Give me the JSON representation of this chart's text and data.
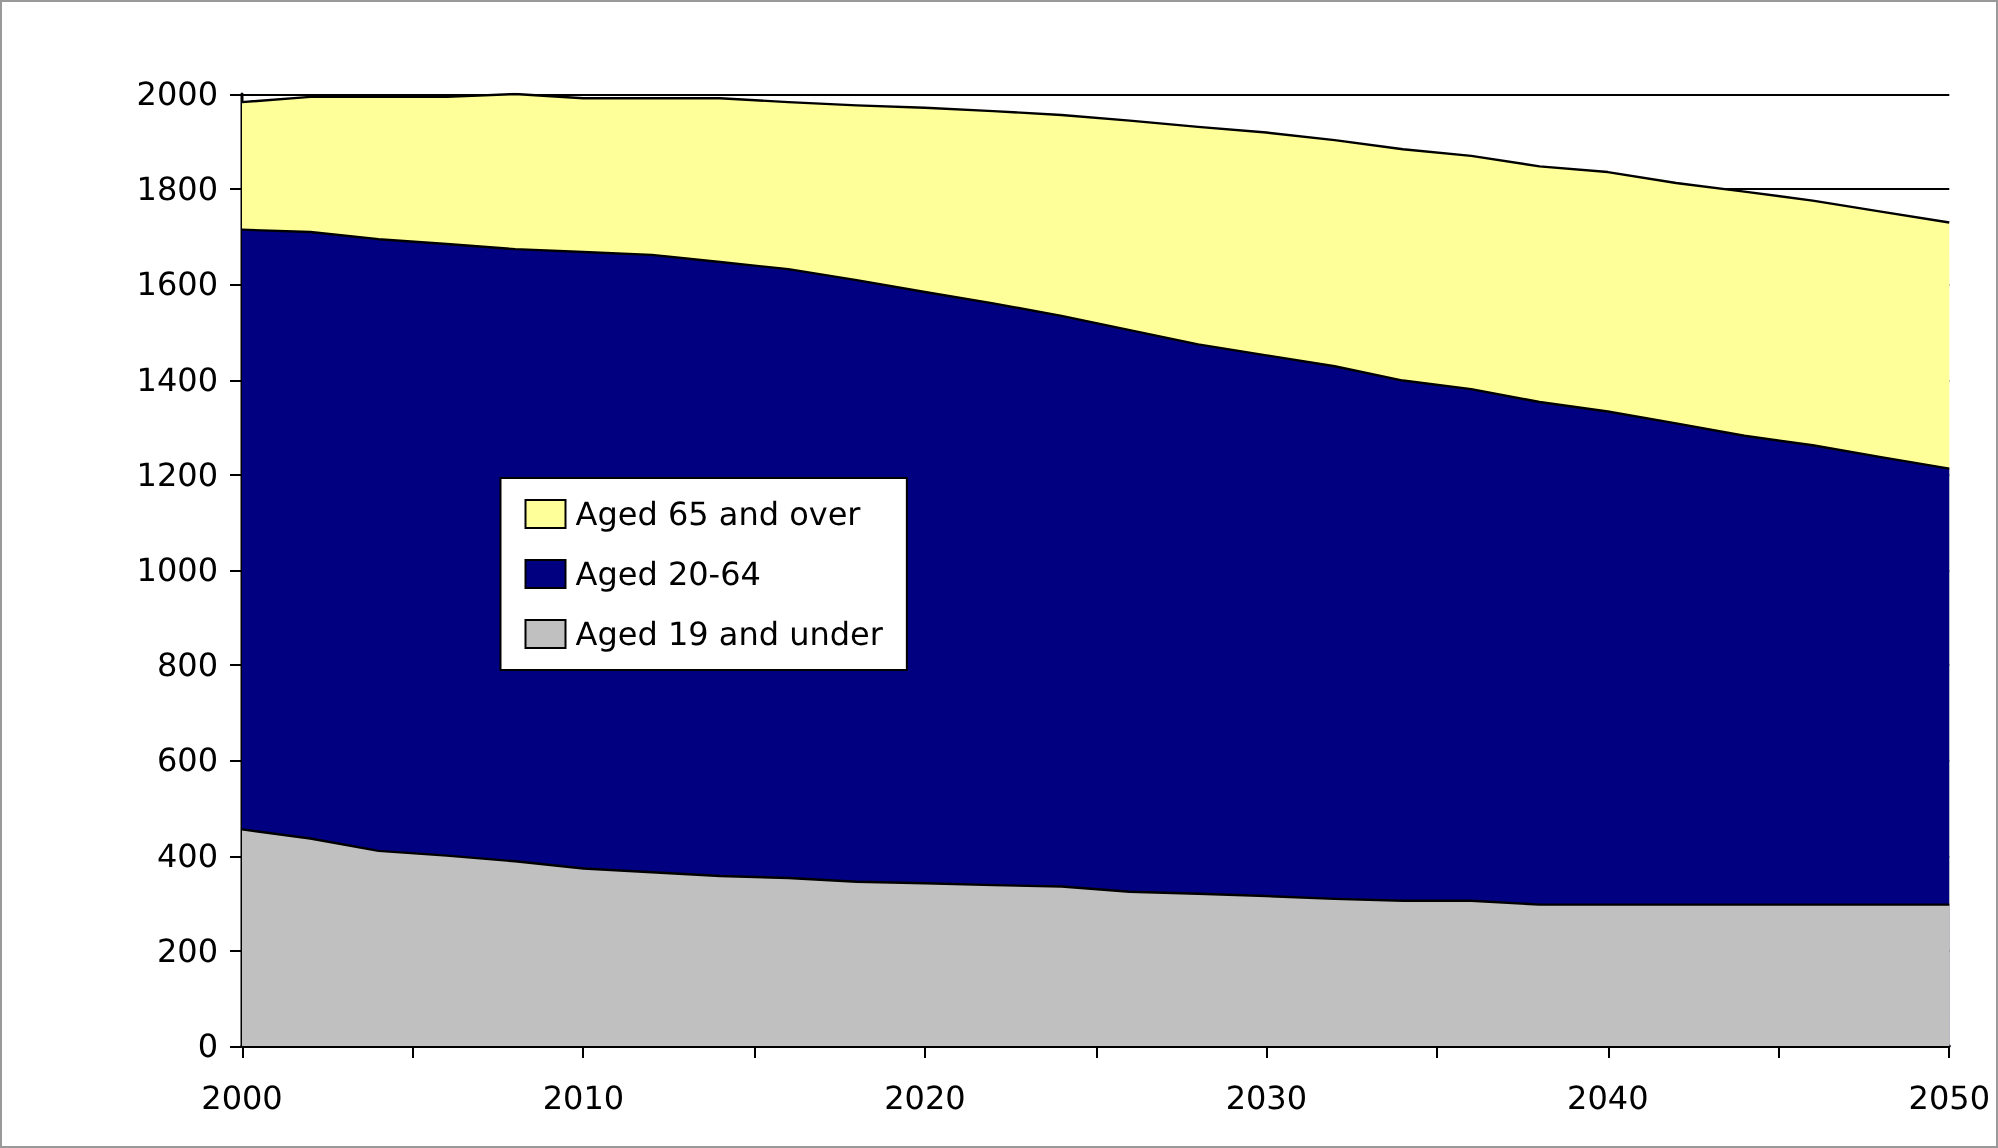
{
  "chart_data": {
    "type": "area",
    "stacked": true,
    "x": [
      2000,
      2002,
      2004,
      2006,
      2008,
      2010,
      2012,
      2014,
      2016,
      2018,
      2020,
      2022,
      2024,
      2026,
      2028,
      2030,
      2032,
      2034,
      2036,
      2038,
      2040,
      2042,
      2044,
      2046,
      2048,
      2050
    ],
    "series": [
      {
        "name": "Aged 19 and under",
        "color": "#c0c0c0",
        "values": [
          455,
          436,
          410,
          400,
          388,
          373,
          365,
          357,
          353,
          345,
          342,
          338,
          335,
          324,
          320,
          315,
          309,
          305,
          305,
          297,
          297,
          297,
          297,
          297,
          297,
          297
        ]
      },
      {
        "name": "Aged 20-64",
        "color": "#000080",
        "values": [
          1260,
          1274,
          1285,
          1285,
          1286,
          1295,
          1297,
          1290,
          1279,
          1264,
          1242,
          1222,
          1199,
          1180,
          1154,
          1136,
          1119,
          1093,
          1075,
          1056,
          1036,
          1011,
          985,
          965,
          940,
          916
        ]
      },
      {
        "name": "Aged 65 and over",
        "color": "#ffff99",
        "values": [
          268,
          284,
          299,
          309,
          326,
          323,
          329,
          344,
          351,
          367,
          387,
          404,
          422,
          440,
          457,
          468,
          475,
          486,
          490,
          495,
          503,
          505,
          513,
          514,
          516,
          517
        ]
      }
    ],
    "xlim": [
      2000,
      2050
    ],
    "xticks": [
      2000,
      {
        "value": 2005,
        "label": null
      },
      2010,
      {
        "value": 2015,
        "label": null
      },
      2020,
      {
        "value": 2025,
        "label": null
      },
      2030,
      {
        "value": 2035,
        "label": null
      },
      2040,
      {
        "value": 2045,
        "label": null
      },
      2050
    ],
    "ylim": [
      0,
      2000
    ],
    "yticks": [
      0,
      200,
      400,
      600,
      800,
      1000,
      1200,
      1400,
      1600,
      1800,
      2000
    ],
    "grid": "y",
    "legend": "left"
  }
}
